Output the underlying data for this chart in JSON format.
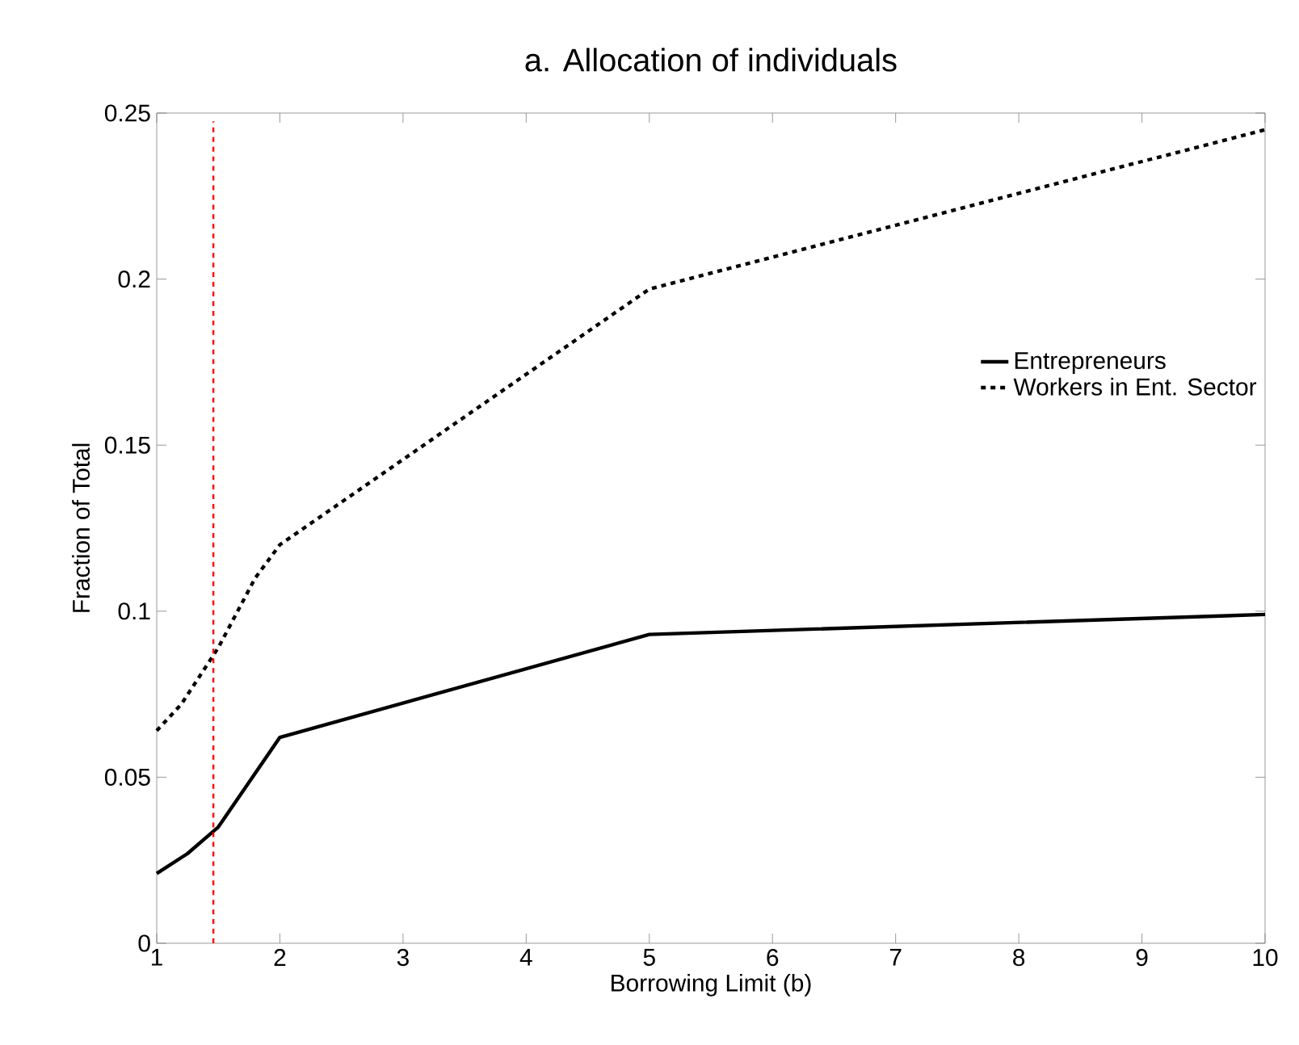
{
  "chart_data": {
    "type": "line",
    "title": "a. Allocation of individuals",
    "xlabel": "Borrowing Limit (b)",
    "ylabel": "Fraction of Total",
    "series": [
      {
        "name": "Entrepreneurs",
        "color": "#000000",
        "line_style": "solid",
        "x": [
          1,
          1.25,
          1.5,
          2,
          5,
          10
        ],
        "values": [
          0.021,
          0.027,
          0.035,
          0.062,
          0.093,
          0.099
        ]
      },
      {
        "name": "Workers in Ent. Sector",
        "color": "#000000",
        "line_style": "dashed",
        "x": [
          1,
          1.2,
          1.5,
          1.8,
          2,
          5,
          10
        ],
        "values": [
          0.064,
          0.072,
          0.089,
          0.11,
          0.12,
          0.197,
          0.245
        ]
      }
    ],
    "xlim": [
      1,
      10
    ],
    "ylim": [
      0,
      0.25
    ],
    "xticks": [
      1,
      2,
      3,
      4,
      5,
      6,
      7,
      8,
      9,
      10
    ],
    "yticks": [
      0,
      0.05,
      0.1,
      0.15,
      0.2,
      0.25
    ],
    "ref_lines": [
      {
        "axis": "x",
        "value": 1.46,
        "color": "#ff0000",
        "line_style": "dashed"
      }
    ],
    "legend": "right"
  }
}
